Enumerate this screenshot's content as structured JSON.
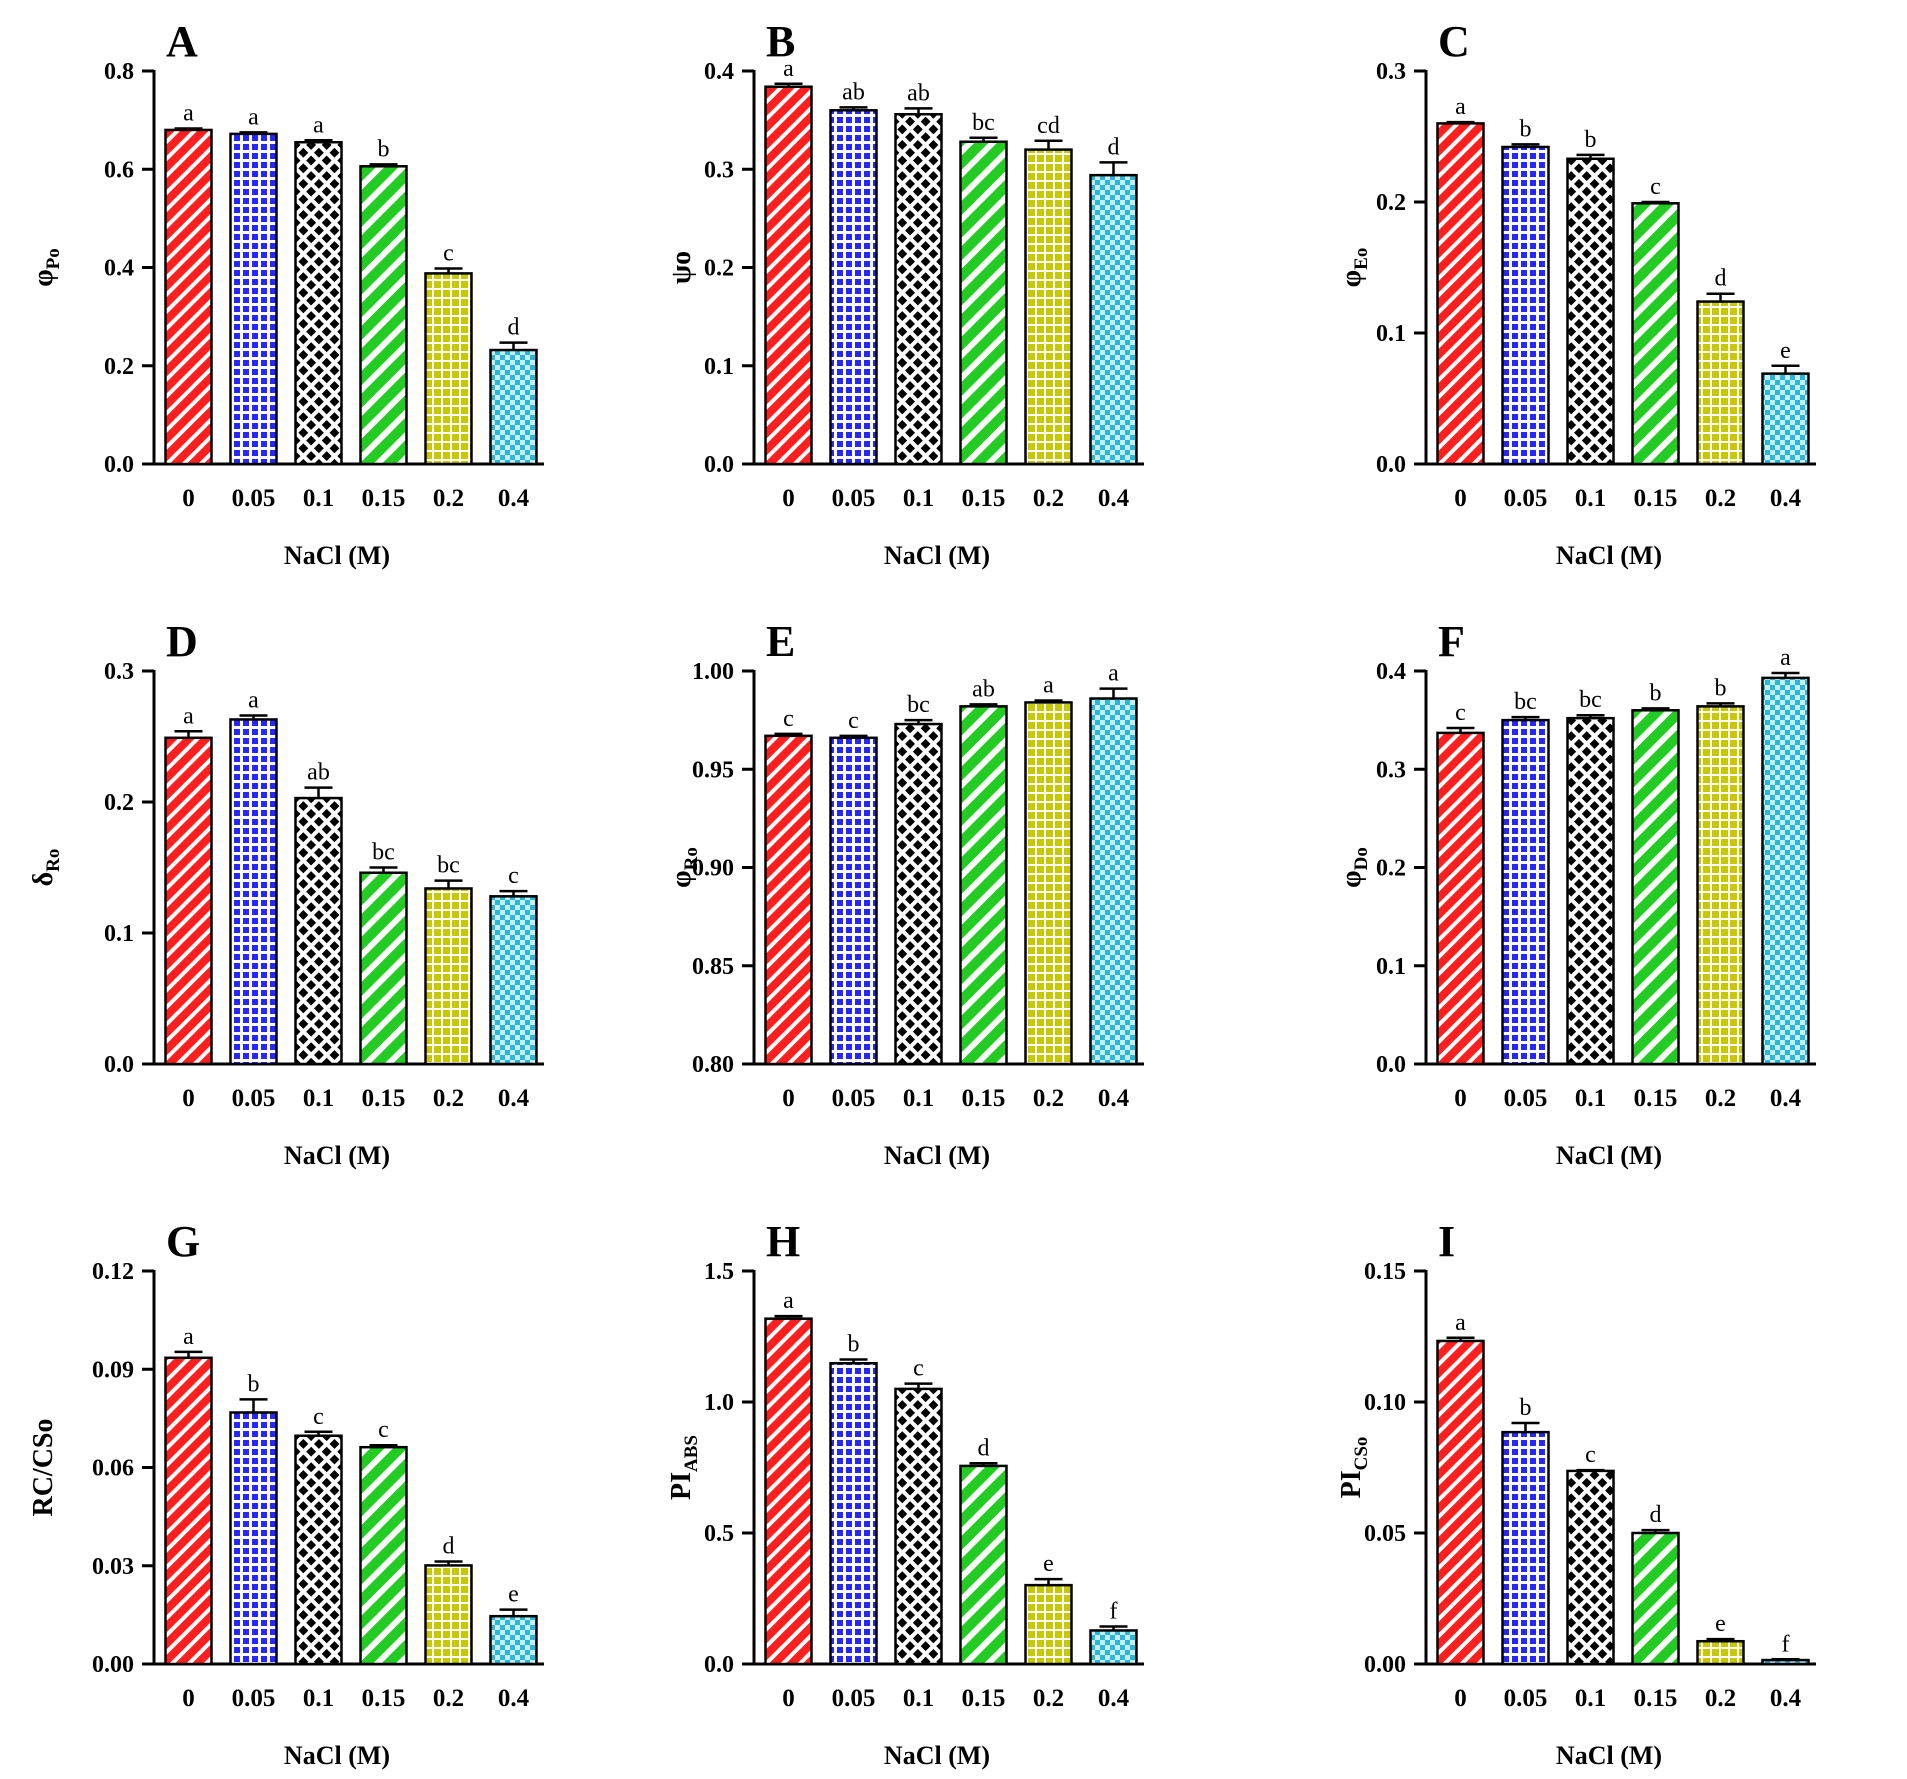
{
  "figure": {
    "x_categories": [
      "0",
      "0.05",
      "0.1",
      "0.15",
      "0.2",
      "0.4"
    ],
    "xlabel": "NaCl (M)"
  },
  "colors": {
    "series": [
      "#ff1f1f",
      "#2626ff",
      "#000000",
      "#22cc22",
      "#c8c800",
      "#29b8d8"
    ],
    "pattern_fg": [
      "#ffffff",
      "#ffffff",
      "#ffffff",
      "#ffffff",
      "#ffffff",
      "#ffffff"
    ],
    "axis": "#000000"
  },
  "chart_data": [
    {
      "type": "bar",
      "panel": "A",
      "ylabel_main": "φ",
      "ylabel_sub": "Po",
      "ylim": [
        0,
        0.8
      ],
      "yticks": [
        "0.0",
        "0.2",
        "0.4",
        "0.6",
        "0.8"
      ],
      "categories": [
        "0",
        "0.05",
        "0.1",
        "0.15",
        "0.2",
        "0.4"
      ],
      "values": [
        0.68,
        0.672,
        0.655,
        0.606,
        0.388,
        0.232
      ],
      "errors": [
        0.003,
        0.003,
        0.004,
        0.004,
        0.01,
        0.015
      ],
      "letters": [
        "a",
        "a",
        "a",
        "b",
        "c",
        "d"
      ]
    },
    {
      "type": "bar",
      "panel": "B",
      "ylabel_main": "ψo",
      "ylabel_sub": "",
      "ylim": [
        0,
        0.4
      ],
      "yticks": [
        "0.0",
        "0.1",
        "0.2",
        "0.3",
        "0.4"
      ],
      "categories": [
        "0",
        "0.05",
        "0.1",
        "0.15",
        "0.2",
        "0.4"
      ],
      "values": [
        0.384,
        0.36,
        0.356,
        0.328,
        0.32,
        0.294
      ],
      "errors": [
        0.003,
        0.003,
        0.006,
        0.004,
        0.009,
        0.013
      ],
      "letters": [
        "a",
        "ab",
        "ab",
        "bc",
        "cd",
        "d"
      ]
    },
    {
      "type": "bar",
      "panel": "C",
      "ylabel_main": "φ",
      "ylabel_sub": "Eo",
      "ylim": [
        0,
        0.3
      ],
      "yticks": [
        "0.0",
        "0.1",
        "0.2",
        "0.3"
      ],
      "categories": [
        "0",
        "0.05",
        "0.1",
        "0.15",
        "0.2",
        "0.4"
      ],
      "values": [
        0.26,
        0.242,
        0.233,
        0.199,
        0.124,
        0.069
      ],
      "errors": [
        0.001,
        0.002,
        0.003,
        0.001,
        0.006,
        0.006
      ],
      "letters": [
        "a",
        "b",
        "b",
        "c",
        "d",
        "e"
      ]
    },
    {
      "type": "bar",
      "panel": "D",
      "ylabel_main": "δ",
      "ylabel_sub": "Ro",
      "ylim": [
        0,
        0.3
      ],
      "yticks": [
        "0.0",
        "0.1",
        "0.2",
        "0.3"
      ],
      "categories": [
        "0",
        "0.05",
        "0.1",
        "0.15",
        "0.2",
        "0.4"
      ],
      "values": [
        0.249,
        0.263,
        0.203,
        0.146,
        0.134,
        0.128
      ],
      "errors": [
        0.005,
        0.003,
        0.008,
        0.004,
        0.006,
        0.004
      ],
      "letters": [
        "a",
        "a",
        "ab",
        "bc",
        "bc",
        "c"
      ]
    },
    {
      "type": "bar",
      "panel": "E",
      "ylabel_main": "φ",
      "ylabel_sub": "Ro",
      "ylim": [
        0.8,
        1.0
      ],
      "yticks": [
        "0.80",
        "0.85",
        "0.90",
        "0.95",
        "1.00"
      ],
      "categories": [
        "0",
        "0.05",
        "0.1",
        "0.15",
        "0.2",
        "0.4"
      ],
      "values": [
        0.967,
        0.966,
        0.973,
        0.982,
        0.984,
        0.986
      ],
      "errors": [
        0.001,
        0.001,
        0.002,
        0.001,
        0.001,
        0.005
      ],
      "letters": [
        "c",
        "c",
        "bc",
        "ab",
        "a",
        "a"
      ]
    },
    {
      "type": "bar",
      "panel": "F",
      "ylabel_main": "φ",
      "ylabel_sub": "Do",
      "ylim": [
        0,
        0.4
      ],
      "yticks": [
        "0.0",
        "0.1",
        "0.2",
        "0.3",
        "0.4"
      ],
      "categories": [
        "0",
        "0.05",
        "0.1",
        "0.15",
        "0.2",
        "0.4"
      ],
      "values": [
        0.337,
        0.35,
        0.352,
        0.36,
        0.364,
        0.393
      ],
      "errors": [
        0.005,
        0.003,
        0.003,
        0.002,
        0.003,
        0.005
      ],
      "letters": [
        "c",
        "bc",
        "bc",
        "b",
        "b",
        "a"
      ]
    },
    {
      "type": "bar",
      "panel": "G",
      "ylabel_main": "RC/CSo",
      "ylabel_sub": "",
      "ylim": [
        0,
        0.12
      ],
      "yticks": [
        "0.00",
        "0.03",
        "0.06",
        "0.09",
        "0.12"
      ],
      "categories": [
        "0",
        "0.05",
        "0.1",
        "0.15",
        "0.2",
        "0.4"
      ],
      "values": [
        0.0935,
        0.0768,
        0.0697,
        0.0662,
        0.0301,
        0.0146
      ],
      "errors": [
        0.0018,
        0.004,
        0.0012,
        0.0006,
        0.0012,
        0.002
      ],
      "letters": [
        "a",
        "b",
        "c",
        "c",
        "d",
        "e"
      ]
    },
    {
      "type": "bar",
      "panel": "H",
      "ylabel_main": "PI",
      "ylabel_sub": "ABS",
      "ylim": [
        0,
        1.5
      ],
      "yticks": [
        "0.0",
        "0.5",
        "1.0",
        "1.5"
      ],
      "categories": [
        "0",
        "0.05",
        "0.1",
        "0.15",
        "0.2",
        "0.4"
      ],
      "values": [
        1.318,
        1.148,
        1.05,
        0.756,
        0.301,
        0.128
      ],
      "errors": [
        0.01,
        0.014,
        0.02,
        0.01,
        0.023,
        0.015
      ],
      "letters": [
        "a",
        "b",
        "c",
        "d",
        "e",
        "f"
      ]
    },
    {
      "type": "bar",
      "panel": "I",
      "ylabel_main": "PI",
      "ylabel_sub": "CSo",
      "ylim": [
        0,
        0.15
      ],
      "yticks": [
        "0.00",
        "0.05",
        "0.10",
        "0.15"
      ],
      "categories": [
        "0",
        "0.05",
        "0.1",
        "0.15",
        "0.2",
        "0.4"
      ],
      "values": [
        0.1233,
        0.0885,
        0.0737,
        0.05,
        0.0087,
        0.0015
      ],
      "errors": [
        0.0012,
        0.0035,
        0.0003,
        0.0011,
        0.0008,
        0.0003
      ],
      "letters": [
        "a",
        "b",
        "c",
        "d",
        "e",
        "f"
      ]
    }
  ]
}
